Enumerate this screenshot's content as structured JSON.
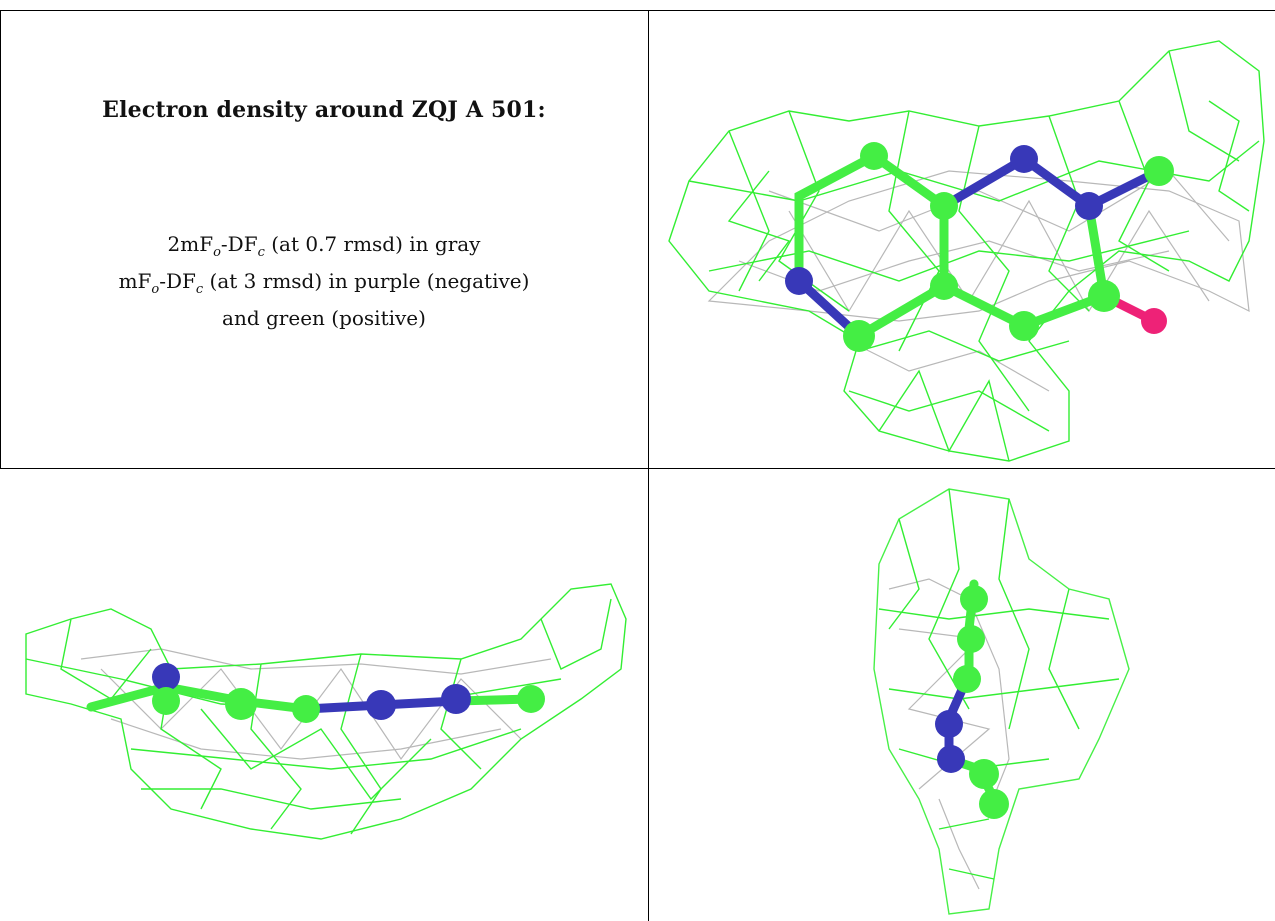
{
  "caption": {
    "title": "Electron density around ZQJ A 501:",
    "line1_prefix": "2mF",
    "line1_sub1": "o",
    "line1_mid": "-DF",
    "line1_sub2": "c",
    "line1_suffix": " (at 0.7 rmsd) in gray",
    "line2_prefix": "mF",
    "line2_sub1": "o",
    "line2_mid": "-DF",
    "line2_sub2": "c",
    "line2_suffix": " (at 3 rmsd) in purple (negative)",
    "line3": "and green (positive)"
  },
  "colors": {
    "positive_mesh": "#33ee33",
    "gray_mesh": "#b8b8b8",
    "carbon_atom": "#44ee44",
    "nitrogen_atom": "#3838b8",
    "oxygen_atom": "#ee2277",
    "border": "#000000"
  }
}
